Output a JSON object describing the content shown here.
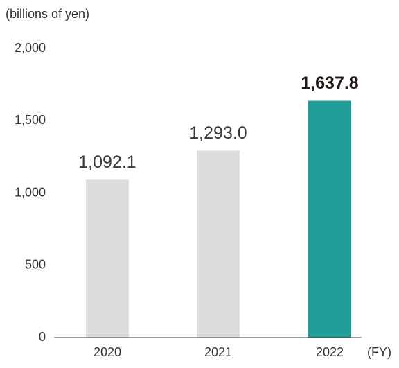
{
  "chart_data": {
    "type": "bar",
    "y_axis_label": "(billions of yen)",
    "x_axis_label": "(FY)",
    "categories": [
      "2020",
      "2021",
      "2022"
    ],
    "values": [
      1092.1,
      1293.0,
      1637.8
    ],
    "value_labels": [
      "1,092.1",
      "1,293.0",
      "1,637.8"
    ],
    "colors": [
      "#dcdddd",
      "#dcdddd",
      "#229e98"
    ],
    "ylim": [
      0,
      2000
    ],
    "yticks": [
      0,
      500,
      {
        "value": 1000,
        "label": "1,000"
      },
      {
        "value": 1500,
        "label": "1,500"
      },
      {
        "value": 2000,
        "label": "2,000"
      }
    ],
    "grid": false
  }
}
